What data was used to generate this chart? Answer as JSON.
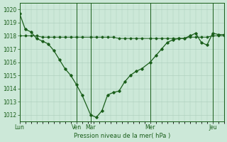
{
  "bg_color": "#cce8d8",
  "grid_color": "#aaccbb",
  "line_color": "#1a5e1a",
  "ylabel": "Pression niveau de la mer( hPa )",
  "ylim": [
    1011.5,
    1020.5
  ],
  "yticks": [
    1012,
    1013,
    1014,
    1015,
    1016,
    1017,
    1018,
    1019,
    1020
  ],
  "day_labels": [
    "Lun",
    "Ven",
    "Mar",
    "Mer",
    "Jeu"
  ],
  "day_positions": [
    0,
    20,
    25,
    46,
    68
  ],
  "xlim": [
    0,
    72
  ],
  "series1_x": [
    0,
    2,
    4,
    6,
    8,
    10,
    12,
    14,
    16,
    18,
    20,
    22,
    25,
    27,
    29,
    31,
    33,
    35,
    37,
    39,
    41,
    43,
    46,
    48,
    50,
    52,
    54,
    56,
    58,
    60,
    62,
    64,
    66,
    68,
    70,
    72
  ],
  "series1_y": [
    1018.0,
    1018.0,
    1018.0,
    1018.0,
    1017.9,
    1017.9,
    1017.9,
    1017.9,
    1017.9,
    1017.9,
    1017.9,
    1017.9,
    1017.9,
    1017.9,
    1017.9,
    1017.9,
    1017.9,
    1017.8,
    1017.8,
    1017.8,
    1017.8,
    1017.8,
    1017.8,
    1017.8,
    1017.8,
    1017.8,
    1017.8,
    1017.8,
    1017.8,
    1017.9,
    1017.9,
    1017.9,
    1017.9,
    1018.0,
    1018.0,
    1018.0
  ],
  "series2_x": [
    0,
    2,
    4,
    6,
    8,
    10,
    12,
    14,
    16,
    18,
    20,
    22,
    25,
    27,
    29,
    31,
    33,
    35,
    37,
    39,
    41,
    43,
    46,
    48,
    50,
    52,
    54,
    56,
    58,
    60,
    62,
    64,
    66,
    68,
    70,
    72
  ],
  "series2_y": [
    1019.7,
    1018.5,
    1018.3,
    1017.8,
    1017.6,
    1017.4,
    1016.9,
    1016.2,
    1015.5,
    1015.0,
    1014.3,
    1013.5,
    1012.0,
    1011.8,
    1012.3,
    1013.5,
    1013.7,
    1013.8,
    1014.5,
    1015.0,
    1015.3,
    1015.5,
    1016.0,
    1016.5,
    1017.0,
    1017.5,
    1017.7,
    1017.8,
    1017.8,
    1018.0,
    1018.2,
    1017.5,
    1017.3,
    1018.2,
    1018.1,
    1018.1
  ]
}
